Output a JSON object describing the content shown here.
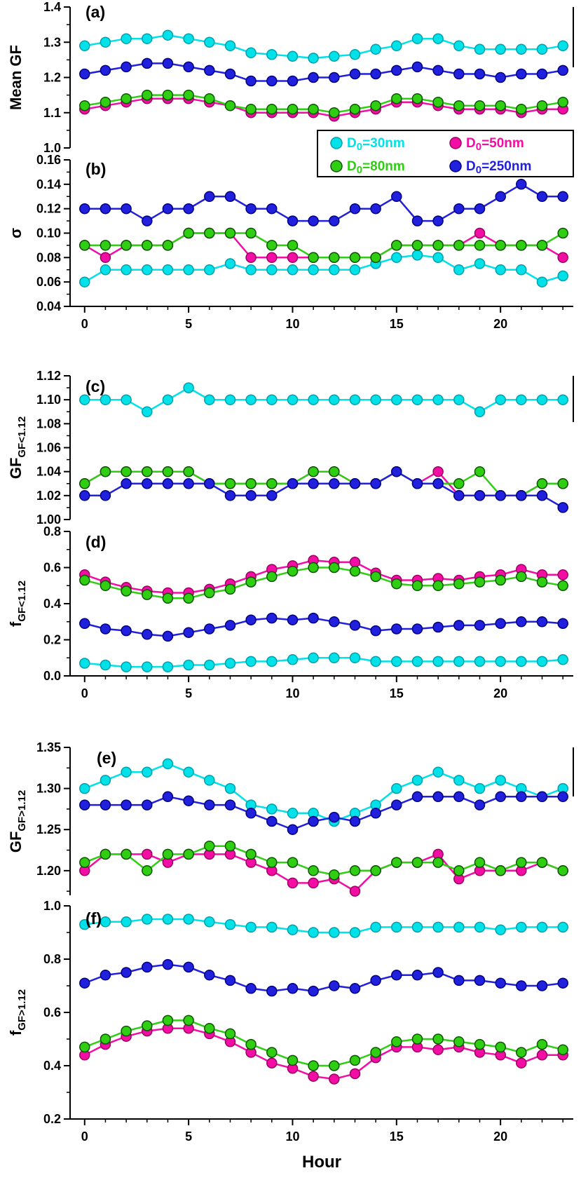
{
  "figure": {
    "xlabel": "Hour",
    "x": [
      0,
      1,
      2,
      3,
      4,
      5,
      6,
      7,
      8,
      9,
      10,
      11,
      12,
      13,
      14,
      15,
      16,
      17,
      18,
      19,
      20,
      21,
      22,
      23
    ],
    "xticks": [
      0,
      5,
      10,
      15,
      20
    ],
    "axis_color": "#000000",
    "background": "#ffffff"
  },
  "series_meta": [
    {
      "id": "d30",
      "label": "D0=30nm",
      "color": "#00E2E8",
      "edge": "#009FAE"
    },
    {
      "id": "d50",
      "label": "D0=50nm",
      "color": "#F20DA4",
      "edge": "#9C0060"
    },
    {
      "id": "d80",
      "label": "D0=80nm",
      "color": "#2FCE13",
      "edge": "#0B5500"
    },
    {
      "id": "d250",
      "label": "D0=250nm",
      "color": "#2020DD",
      "edge": "#000080"
    }
  ],
  "legend": {
    "entries": [
      {
        "series": "d30",
        "prefix": "D",
        "sub": "0",
        "suffix": "=30nm"
      },
      {
        "series": "d50",
        "prefix": "D",
        "sub": "0",
        "suffix": "=50nm"
      },
      {
        "series": "d80",
        "prefix": "D",
        "sub": "0",
        "suffix": "=80nm"
      },
      {
        "series": "d250",
        "prefix": "D",
        "sub": "0",
        "suffix": "=250nm"
      }
    ]
  },
  "chart_data": [
    {
      "id": "a",
      "type": "line",
      "label": "(a)",
      "ylabel": {
        "main": "Mean GF",
        "sub": ""
      },
      "ylim": [
        1.0,
        1.4
      ],
      "yticks": [
        1.0,
        1.1,
        1.2,
        1.3,
        1.4
      ],
      "yminor": 0.05,
      "ydecimals": 1,
      "series": {
        "d30": [
          1.29,
          1.3,
          1.31,
          1.31,
          1.32,
          1.31,
          1.3,
          1.29,
          1.27,
          1.265,
          1.26,
          1.255,
          1.26,
          1.265,
          1.28,
          1.29,
          1.31,
          1.31,
          1.29,
          1.28,
          1.28,
          1.28,
          1.28,
          1.29
        ],
        "d50": [
          1.11,
          1.12,
          1.13,
          1.14,
          1.14,
          1.14,
          1.13,
          1.12,
          1.1,
          1.1,
          1.1,
          1.1,
          1.09,
          1.1,
          1.11,
          1.13,
          1.13,
          1.12,
          1.11,
          1.11,
          1.11,
          1.1,
          1.11,
          1.11
        ],
        "d80": [
          1.12,
          1.13,
          1.14,
          1.15,
          1.15,
          1.15,
          1.14,
          1.12,
          1.11,
          1.11,
          1.11,
          1.11,
          1.1,
          1.11,
          1.12,
          1.14,
          1.14,
          1.13,
          1.12,
          1.12,
          1.12,
          1.11,
          1.12,
          1.13
        ],
        "d250": [
          1.21,
          1.22,
          1.23,
          1.24,
          1.24,
          1.23,
          1.22,
          1.21,
          1.19,
          1.19,
          1.19,
          1.2,
          1.2,
          1.21,
          1.21,
          1.22,
          1.23,
          1.22,
          1.21,
          1.21,
          1.2,
          1.21,
          1.21,
          1.22
        ]
      }
    },
    {
      "id": "b",
      "type": "line",
      "label": "(b)",
      "ylabel": {
        "main": "σ",
        "sub": ""
      },
      "ylim": [
        0.04,
        0.16
      ],
      "yticks": [
        0.04,
        0.06,
        0.08,
        0.1,
        0.12,
        0.14,
        0.16
      ],
      "yminor": 0.01,
      "ydecimals": 2,
      "series": {
        "d30": [
          0.06,
          0.07,
          0.07,
          0.07,
          0.07,
          0.07,
          0.07,
          0.075,
          0.07,
          0.07,
          0.07,
          0.07,
          0.07,
          0.07,
          0.075,
          0.08,
          0.082,
          0.08,
          0.07,
          0.075,
          0.07,
          0.07,
          0.06,
          0.065
        ],
        "d50": [
          0.09,
          0.08,
          0.09,
          0.09,
          0.09,
          0.1,
          0.1,
          0.1,
          0.08,
          0.08,
          0.08,
          0.08,
          0.08,
          0.08,
          0.08,
          0.09,
          0.09,
          0.09,
          0.09,
          0.1,
          0.09,
          0.09,
          0.09,
          0.08
        ],
        "d80": [
          0.09,
          0.09,
          0.09,
          0.09,
          0.09,
          0.1,
          0.1,
          0.1,
          0.1,
          0.09,
          0.09,
          0.08,
          0.08,
          0.08,
          0.08,
          0.09,
          0.09,
          0.09,
          0.09,
          0.09,
          0.09,
          0.09,
          0.09,
          0.1
        ],
        "d250": [
          0.12,
          0.12,
          0.12,
          0.11,
          0.12,
          0.12,
          0.13,
          0.13,
          0.12,
          0.12,
          0.11,
          0.11,
          0.11,
          0.12,
          0.12,
          0.13,
          0.11,
          0.11,
          0.12,
          0.12,
          0.13,
          0.14,
          0.13,
          0.13
        ]
      }
    },
    {
      "id": "c",
      "type": "line",
      "label": "(c)",
      "ylabel": {
        "main": "GF",
        "sub": "GF<1.12"
      },
      "ylim": [
        1.0,
        1.12
      ],
      "yticks": [
        1.0,
        1.02,
        1.04,
        1.06,
        1.08,
        1.1,
        1.12
      ],
      "yminor": 0.01,
      "ydecimals": 2,
      "series": {
        "d30": [
          1.1,
          1.1,
          1.1,
          1.09,
          1.1,
          1.11,
          1.1,
          1.1,
          1.1,
          1.1,
          1.1,
          1.1,
          1.1,
          1.1,
          1.1,
          1.1,
          1.1,
          1.1,
          1.1,
          1.09,
          1.1,
          1.1,
          1.1,
          1.1
        ],
        "d50": [
          1.03,
          1.04,
          1.04,
          1.04,
          1.04,
          1.04,
          1.03,
          1.03,
          1.03,
          1.03,
          1.03,
          1.04,
          1.04,
          1.03,
          1.03,
          1.04,
          1.03,
          1.04,
          1.02,
          1.02,
          1.02,
          1.02,
          1.03,
          1.03
        ],
        "d80": [
          1.03,
          1.04,
          1.04,
          1.04,
          1.04,
          1.04,
          1.03,
          1.03,
          1.03,
          1.03,
          1.03,
          1.04,
          1.04,
          1.03,
          1.03,
          1.04,
          1.03,
          1.03,
          1.03,
          1.04,
          1.02,
          1.02,
          1.03,
          1.03
        ],
        "d250": [
          1.02,
          1.02,
          1.03,
          1.03,
          1.03,
          1.03,
          1.03,
          1.02,
          1.02,
          1.02,
          1.03,
          1.03,
          1.03,
          1.03,
          1.03,
          1.04,
          1.03,
          1.03,
          1.02,
          1.02,
          1.02,
          1.02,
          1.02,
          1.01
        ]
      }
    },
    {
      "id": "d",
      "type": "line",
      "label": "(d)",
      "ylabel": {
        "main": "f",
        "sub": "GF<1.12"
      },
      "ylim": [
        0.0,
        0.8
      ],
      "yticks": [
        0.0,
        0.2,
        0.4,
        0.6,
        0.8
      ],
      "yminor": 0.1,
      "ydecimals": 1,
      "series": {
        "d30": [
          0.07,
          0.06,
          0.05,
          0.05,
          0.05,
          0.06,
          0.06,
          0.07,
          0.08,
          0.08,
          0.09,
          0.1,
          0.1,
          0.1,
          0.08,
          0.08,
          0.08,
          0.08,
          0.08,
          0.08,
          0.08,
          0.08,
          0.08,
          0.09
        ],
        "d50": [
          0.56,
          0.52,
          0.49,
          0.47,
          0.46,
          0.46,
          0.48,
          0.51,
          0.55,
          0.59,
          0.61,
          0.64,
          0.63,
          0.63,
          0.57,
          0.53,
          0.53,
          0.54,
          0.53,
          0.55,
          0.56,
          0.59,
          0.56,
          0.56
        ],
        "d80": [
          0.53,
          0.5,
          0.47,
          0.45,
          0.43,
          0.43,
          0.46,
          0.48,
          0.52,
          0.55,
          0.58,
          0.6,
          0.6,
          0.58,
          0.55,
          0.51,
          0.5,
          0.5,
          0.51,
          0.52,
          0.53,
          0.55,
          0.52,
          0.5
        ],
        "d250": [
          0.29,
          0.26,
          0.25,
          0.23,
          0.22,
          0.24,
          0.26,
          0.28,
          0.31,
          0.32,
          0.31,
          0.32,
          0.3,
          0.28,
          0.25,
          0.26,
          0.26,
          0.27,
          0.28,
          0.28,
          0.29,
          0.3,
          0.3,
          0.29
        ]
      }
    },
    {
      "id": "e",
      "type": "line",
      "label": "(e)",
      "ylabel": {
        "main": "GF",
        "sub": "GF>1.12"
      },
      "ylim": [
        1.17,
        1.35
      ],
      "yticks": [
        1.2,
        1.25,
        1.3,
        1.35
      ],
      "yminor": 0.025,
      "ydecimals": 2,
      "series": {
        "d30": [
          1.3,
          1.31,
          1.32,
          1.32,
          1.33,
          1.32,
          1.31,
          1.3,
          1.28,
          1.275,
          1.27,
          1.27,
          1.26,
          1.27,
          1.28,
          1.3,
          1.31,
          1.32,
          1.31,
          1.3,
          1.31,
          1.3,
          1.29,
          1.3
        ],
        "d50": [
          1.2,
          1.22,
          1.22,
          1.22,
          1.21,
          1.22,
          1.22,
          1.22,
          1.21,
          1.2,
          1.185,
          1.185,
          1.19,
          1.175,
          1.2,
          1.21,
          1.21,
          1.22,
          1.19,
          1.2,
          1.2,
          1.2,
          1.21,
          1.2
        ],
        "d80": [
          1.21,
          1.22,
          1.22,
          1.2,
          1.22,
          1.22,
          1.23,
          1.23,
          1.22,
          1.21,
          1.21,
          1.2,
          1.195,
          1.2,
          1.2,
          1.21,
          1.21,
          1.21,
          1.2,
          1.21,
          1.2,
          1.21,
          1.21,
          1.2
        ],
        "d250": [
          1.28,
          1.28,
          1.28,
          1.28,
          1.29,
          1.285,
          1.28,
          1.28,
          1.27,
          1.26,
          1.25,
          1.26,
          1.265,
          1.26,
          1.27,
          1.28,
          1.29,
          1.29,
          1.29,
          1.28,
          1.29,
          1.29,
          1.29,
          1.29
        ]
      }
    },
    {
      "id": "f",
      "type": "line",
      "label": "(f)",
      "ylabel": {
        "main": "f",
        "sub": "GF>1.12"
      },
      "ylim": [
        0.2,
        1.0
      ],
      "yticks": [
        0.2,
        0.4,
        0.6,
        0.8,
        1.0
      ],
      "yminor": 0.1,
      "ydecimals": 1,
      "series": {
        "d30": [
          0.93,
          0.94,
          0.94,
          0.95,
          0.95,
          0.95,
          0.94,
          0.93,
          0.92,
          0.92,
          0.91,
          0.9,
          0.9,
          0.9,
          0.92,
          0.92,
          0.92,
          0.92,
          0.92,
          0.92,
          0.91,
          0.92,
          0.92,
          0.92
        ],
        "d50": [
          0.44,
          0.48,
          0.51,
          0.53,
          0.54,
          0.54,
          0.52,
          0.49,
          0.45,
          0.41,
          0.39,
          0.36,
          0.35,
          0.37,
          0.43,
          0.47,
          0.47,
          0.46,
          0.47,
          0.45,
          0.44,
          0.41,
          0.44,
          0.44
        ],
        "d80": [
          0.47,
          0.5,
          0.53,
          0.55,
          0.57,
          0.57,
          0.54,
          0.52,
          0.48,
          0.45,
          0.42,
          0.4,
          0.4,
          0.42,
          0.45,
          0.49,
          0.5,
          0.5,
          0.49,
          0.48,
          0.47,
          0.45,
          0.48,
          0.46
        ],
        "d250": [
          0.71,
          0.74,
          0.75,
          0.77,
          0.78,
          0.77,
          0.74,
          0.72,
          0.69,
          0.68,
          0.69,
          0.68,
          0.7,
          0.69,
          0.72,
          0.74,
          0.74,
          0.75,
          0.72,
          0.72,
          0.71,
          0.7,
          0.7,
          0.71
        ]
      }
    }
  ]
}
